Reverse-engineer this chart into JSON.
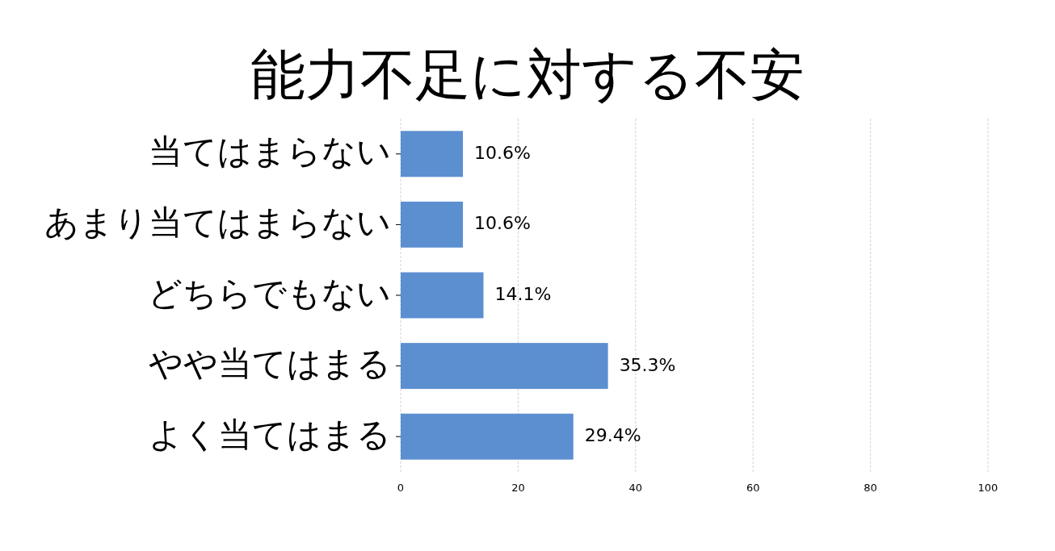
{
  "chart_data": {
    "type": "bar",
    "orientation": "horizontal",
    "title": "能力不足に対する不安",
    "categories": [
      "当てはまらない",
      "あまり当てはまらない",
      "どちらでもない",
      "やや当てはまる",
      "よく当てはまる"
    ],
    "values": [
      10.6,
      10.6,
      14.1,
      35.3,
      29.4
    ],
    "value_labels": [
      "10.6%",
      "10.6%",
      "14.1%",
      "35.3%",
      "29.4%"
    ],
    "color": "#5b8fd0",
    "xlim": [
      0,
      100
    ],
    "xticks": [
      0,
      20,
      40,
      60,
      80,
      100
    ],
    "grid": "x"
  }
}
